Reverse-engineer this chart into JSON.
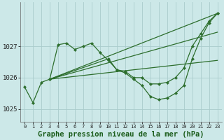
{
  "bg_color": "#cce8e8",
  "grid_color": "#aacccc",
  "line_color": "#2d6e2d",
  "xlabel": "Graphe pression niveau de la mer (hPa)",
  "xlabel_fontsize": 7.5,
  "yticks": [
    1025,
    1026,
    1027
  ],
  "xticks": [
    0,
    1,
    2,
    3,
    4,
    5,
    6,
    7,
    8,
    9,
    10,
    11,
    12,
    13,
    14,
    15,
    16,
    17,
    18,
    19,
    20,
    21,
    22,
    23
  ],
  "xlim": [
    -0.5,
    23.5
  ],
  "ylim": [
    1024.6,
    1028.4
  ],
  "series": [
    {
      "x": [
        0,
        1,
        2,
        3,
        4,
        5,
        6,
        7,
        8,
        9,
        10,
        11,
        12,
        13,
        14,
        15,
        16,
        17,
        18,
        19,
        20,
        21,
        22,
        23
      ],
      "y": [
        1025.7,
        1025.2,
        1025.85,
        1025.95,
        1027.05,
        1027.1,
        1026.9,
        1027.0,
        1027.1,
        1026.8,
        1026.55,
        1026.25,
        1026.2,
        1026.0,
        1026.0,
        1025.8,
        1025.8,
        1025.85,
        1026.0,
        1026.3,
        1027.0,
        1027.4,
        1027.8,
        1028.05
      ],
      "has_markers": true
    },
    {
      "x": [
        3,
        10,
        11,
        12,
        13,
        14,
        15,
        16,
        17,
        18,
        19,
        20,
        21,
        22,
        23
      ],
      "y": [
        1025.95,
        1026.6,
        1026.25,
        1026.15,
        1025.95,
        1025.75,
        1025.4,
        1025.3,
        1025.35,
        1025.5,
        1025.75,
        1026.6,
        1027.25,
        1027.75,
        1028.05
      ],
      "has_markers": true
    },
    {
      "x": [
        3,
        23
      ],
      "y": [
        1025.95,
        1028.05
      ],
      "has_markers": false
    },
    {
      "x": [
        3,
        23
      ],
      "y": [
        1025.95,
        1027.45
      ],
      "has_markers": false
    },
    {
      "x": [
        3,
        23
      ],
      "y": [
        1025.95,
        1026.55
      ],
      "has_markers": false
    }
  ]
}
